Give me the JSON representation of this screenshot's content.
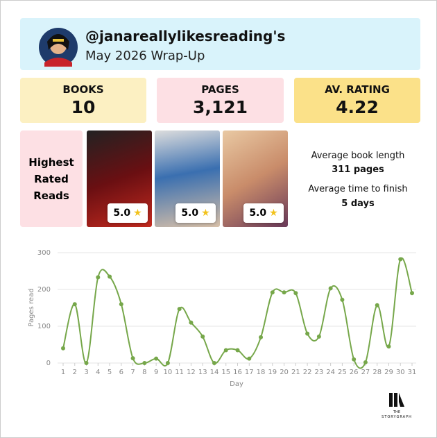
{
  "header": {
    "username": "@janareallylikesreading's",
    "subtitle": "May 2026 Wrap-Up"
  },
  "stats": [
    {
      "label": "BOOKS",
      "value": "10"
    },
    {
      "label": "PAGES",
      "value": "3,121"
    },
    {
      "label": "AV. RATING",
      "value": "4.22"
    }
  ],
  "highest_rated": {
    "title": "Highest Rated Reads",
    "books": [
      {
        "rating": "5.0"
      },
      {
        "rating": "5.0"
      },
      {
        "rating": "5.0"
      }
    ]
  },
  "averages": [
    {
      "label": "Average book length",
      "value": "311 pages"
    },
    {
      "label": "Average time to finish",
      "value": "5 days"
    }
  ],
  "chart_data": {
    "type": "line",
    "x_label": "Day",
    "y_label": "Pages read",
    "x": [
      1,
      2,
      3,
      4,
      5,
      6,
      7,
      8,
      9,
      10,
      11,
      12,
      13,
      14,
      15,
      16,
      17,
      18,
      19,
      20,
      21,
      22,
      23,
      24,
      25,
      26,
      27,
      28,
      29,
      30,
      31
    ],
    "xlim": [
      1,
      31
    ],
    "xticks": [
      1,
      2,
      3,
      4,
      5,
      6,
      7,
      8,
      9,
      10,
      11,
      12,
      13,
      14,
      15,
      16,
      17,
      18,
      19,
      20,
      21,
      22,
      23,
      24,
      25,
      26,
      27,
      28,
      29,
      30,
      31
    ],
    "ylim": [
      0,
      300
    ],
    "yticks": [
      0,
      100,
      200,
      300
    ],
    "grid": true,
    "series": [
      {
        "color": "#76a74a",
        "values": [
          40,
          160,
          0,
          233,
          235,
          160,
          13,
          0,
          12,
          0,
          147,
          110,
          72,
          0,
          35,
          35,
          12,
          70,
          192,
          192,
          190,
          80,
          72,
          203,
          172,
          10,
          2,
          157,
          45,
          282,
          190
        ]
      }
    ]
  },
  "logo": {
    "line1": "THE",
    "line2": "STORYGRAPH"
  }
}
